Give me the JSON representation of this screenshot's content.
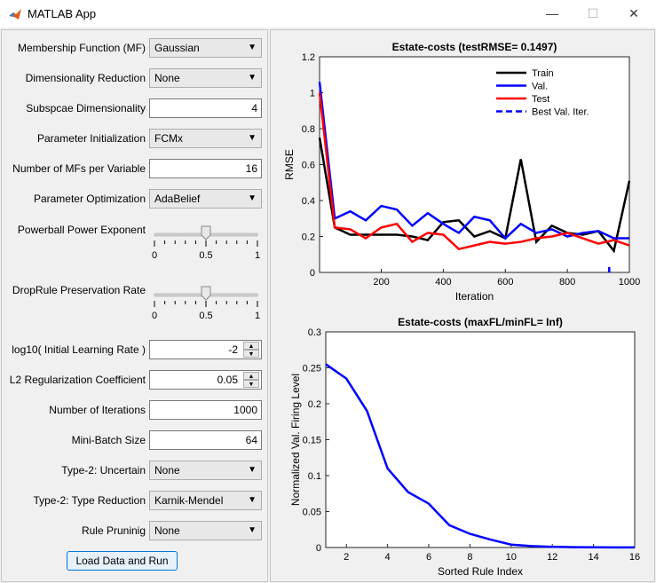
{
  "window": {
    "title": "MATLAB App",
    "minimize": "—",
    "maximize": "☐",
    "close": "✕"
  },
  "form": {
    "membership_function": {
      "label": "Membership Function (MF)",
      "value": "Gaussian"
    },
    "dim_reduction": {
      "label": "Dimensionality Reduction",
      "value": "None"
    },
    "subspace_dim": {
      "label": "Subspcae Dimensionality",
      "value": "4"
    },
    "param_init": {
      "label": "Parameter Initialization",
      "value": "FCMx"
    },
    "num_mfs": {
      "label": "Number of MFs per Variable",
      "value": "16"
    },
    "param_opt": {
      "label": "Parameter Optimization",
      "value": "AdaBelief"
    },
    "powerball": {
      "label": "Powerball Power Exponent",
      "value": 0.5,
      "ticks": [
        "0",
        "0.5",
        "1"
      ]
    },
    "droprule": {
      "label": "DropRule Preservation Rate",
      "value": 0.5,
      "ticks": [
        "0",
        "0.5",
        "1"
      ]
    },
    "learning_rate": {
      "label": "log10( Initial Learning Rate )",
      "value": "-2"
    },
    "l2_reg": {
      "label": "L2 Regularization Coefficient",
      "value": "0.05"
    },
    "iterations": {
      "label": "Number of Iterations",
      "value": "1000"
    },
    "batch_size": {
      "label": "Mini-Batch Size",
      "value": "64"
    },
    "type2_uncertain": {
      "label": "Type-2: Uncertain",
      "value": "None"
    },
    "type2_reduction": {
      "label": "Type-2: Type Reduction",
      "value": "Karnik-Mendel"
    },
    "rule_pruning": {
      "label": "Rule Pruninig",
      "value": "None"
    },
    "run_button": "Load Data and Run"
  },
  "chart_data": [
    {
      "type": "line",
      "title": "Estate-costs (testRMSE= 0.1497)",
      "xlabel": "Iteration",
      "ylabel": "RMSE",
      "xlim": [
        1,
        1000
      ],
      "ylim": [
        0,
        1.2
      ],
      "xticks": [
        "200",
        "400",
        "600",
        "800",
        "1000"
      ],
      "yticks": [
        "0",
        "0.2",
        "0.4",
        "0.6",
        "0.8",
        "1",
        "1.2"
      ],
      "x": [
        1,
        50,
        100,
        150,
        200,
        250,
        300,
        350,
        400,
        450,
        500,
        550,
        600,
        650,
        700,
        750,
        800,
        850,
        900,
        950,
        1000
      ],
      "series": [
        {
          "name": "Train",
          "color": "#000000",
          "values": [
            0.75,
            0.25,
            0.21,
            0.21,
            0.21,
            0.21,
            0.2,
            0.18,
            0.28,
            0.29,
            0.2,
            0.23,
            0.19,
            0.63,
            0.17,
            0.26,
            0.22,
            0.21,
            0.23,
            0.12,
            0.51
          ]
        },
        {
          "name": "Val.",
          "color": "#0000ff",
          "values": [
            1.06,
            0.3,
            0.34,
            0.29,
            0.37,
            0.35,
            0.26,
            0.33,
            0.27,
            0.22,
            0.31,
            0.29,
            0.19,
            0.27,
            0.22,
            0.24,
            0.2,
            0.22,
            0.23,
            0.19,
            0.19
          ]
        },
        {
          "name": "Test",
          "color": "#ff0000",
          "values": [
            1.0,
            0.25,
            0.24,
            0.19,
            0.25,
            0.27,
            0.17,
            0.22,
            0.21,
            0.13,
            0.15,
            0.17,
            0.16,
            0.17,
            0.19,
            0.2,
            0.22,
            0.19,
            0.16,
            0.18,
            0.15
          ]
        },
        {
          "name": "Best Val. Iter.",
          "color": "#0000ff",
          "dashed": true,
          "x_value": 935
        }
      ]
    },
    {
      "type": "line",
      "title": "Estate-costs (maxFL/minFL= Inf)",
      "xlabel": "Sorted Rule Index",
      "ylabel": "Normalized Val. Firing Level",
      "xlim": [
        1,
        16
      ],
      "ylim": [
        0,
        0.3
      ],
      "xticks": [
        "2",
        "4",
        "6",
        "8",
        "10",
        "12",
        "14",
        "16"
      ],
      "yticks": [
        "0",
        "0.05",
        "0.1",
        "0.15",
        "0.2",
        "0.25",
        "0.3"
      ],
      "x": [
        1,
        2,
        3,
        4,
        5,
        6,
        7,
        8,
        9,
        10,
        11,
        12,
        13,
        14,
        15,
        16
      ],
      "series": [
        {
          "name": "",
          "color": "#0000ff",
          "values": [
            0.255,
            0.235,
            0.19,
            0.11,
            0.077,
            0.061,
            0.031,
            0.019,
            0.011,
            0.004,
            0.002,
            0.001,
            0.0005,
            0.0003,
            0.0002,
            0.0001
          ]
        }
      ]
    }
  ]
}
